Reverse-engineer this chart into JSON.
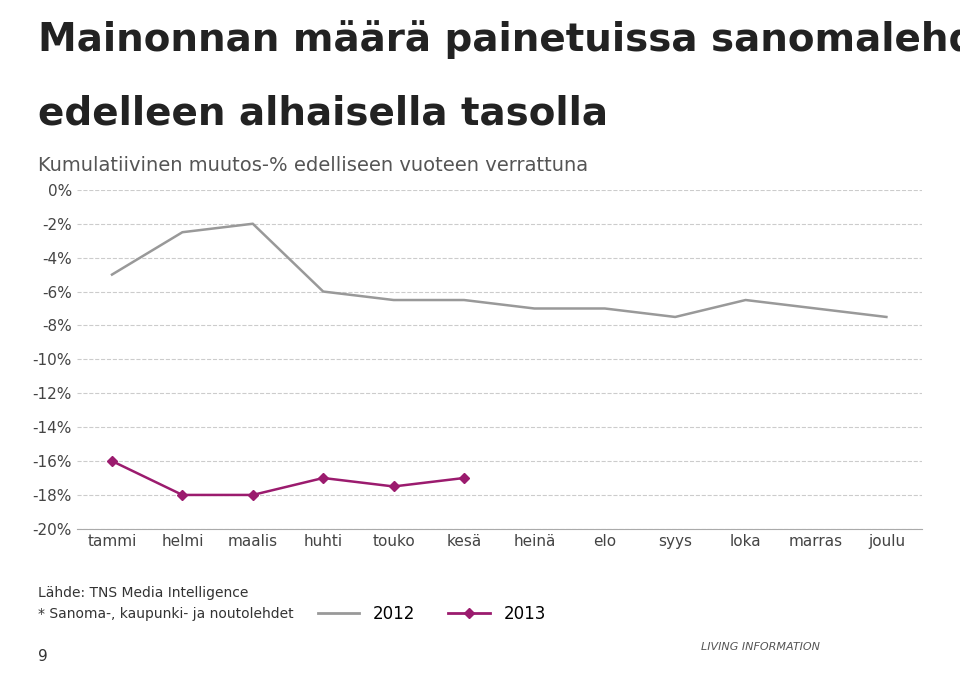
{
  "title_line1": "Mainonnan määrä painetuissa sanomalehdissä*",
  "title_line2": "edelleen alhaisella tasolla",
  "subtitle": "Kumulatiivinen muutos-% edelliseen vuoteen verrattuna",
  "categories": [
    "tammi",
    "helmi",
    "maalis",
    "huhti",
    "touko",
    "kesä",
    "heinä",
    "elo",
    "syys",
    "loka",
    "marras",
    "joulu"
  ],
  "series_2012": [
    -5.0,
    -2.5,
    -2.0,
    -6.0,
    -6.5,
    -6.5,
    -7.0,
    -7.0,
    -7.5,
    -6.5,
    -7.0,
    -7.5
  ],
  "series_2013": [
    -16.0,
    -18.0,
    -18.0,
    -17.0,
    -17.5,
    -17.0,
    null,
    null,
    null,
    null,
    null,
    null
  ],
  "color_2012": "#999999",
  "color_2013": "#9b1b6e",
  "ylim_min": -20,
  "ylim_max": 0,
  "yticks": [
    0,
    -2,
    -4,
    -6,
    -8,
    -10,
    -12,
    -14,
    -16,
    -18,
    -20
  ],
  "ylabel_format": "%",
  "source_line1": "Lähde: TNS Media Intelligence",
  "source_line2": "* Sanoma-, kaupunki- ja noutolehdet",
  "page_number": "9",
  "background_color": "#ffffff",
  "title_fontsize": 28,
  "subtitle_fontsize": 14,
  "axis_fontsize": 11,
  "legend_2012": "2012",
  "legend_2013": "2013",
  "alma_color": "#9b1b6e"
}
